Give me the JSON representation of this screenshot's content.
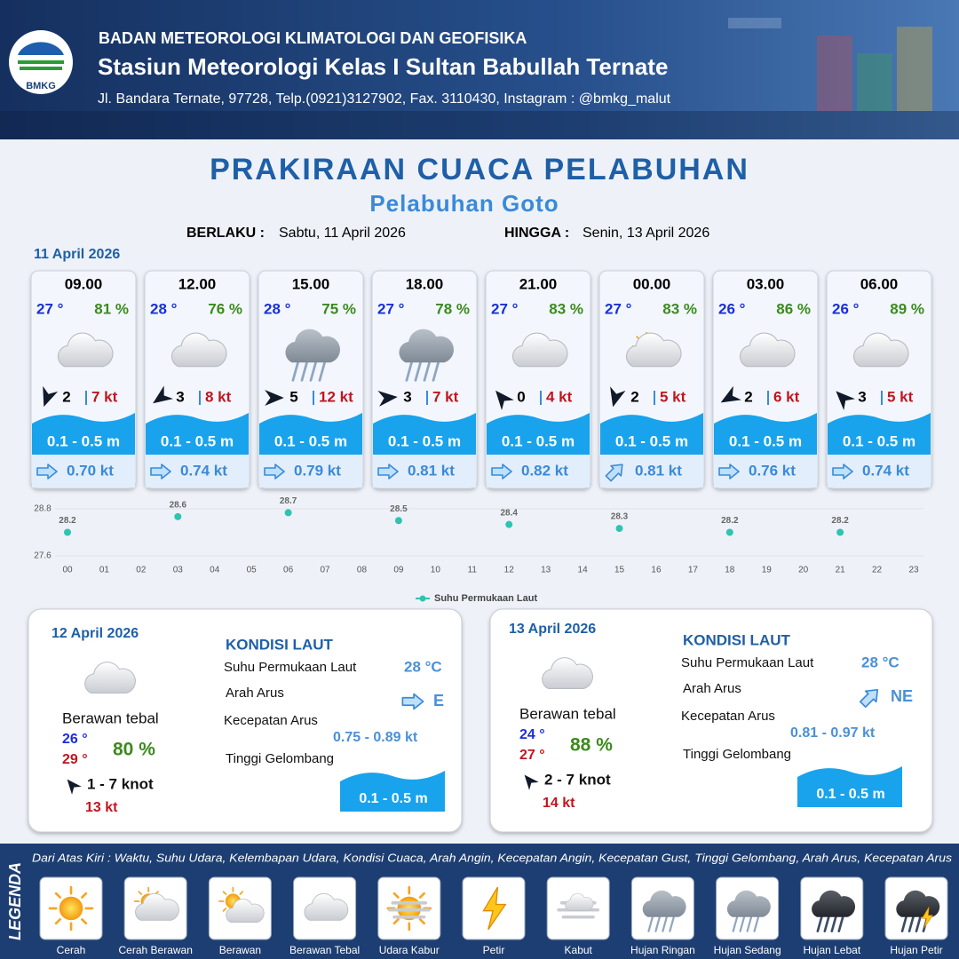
{
  "header": {
    "logo": "BMKG",
    "org": "BADAN METEOROLOGI KLIMATOLOGI DAN GEOFISIKA",
    "station": "Stasiun Meteorologi Kelas I Sultan Babullah Ternate",
    "address": "Jl. Bandara Ternate, 97728, Telp.(0921)3127902, Fax. 3110430, Instagram : @bmkg_malut"
  },
  "title": "PRAKIRAAN CUACA PELABUHAN",
  "subtitle": "Pelabuhan Goto",
  "validity": {
    "from_label": "BERLAKU :",
    "from": "Sabtu, 11 April 2026",
    "to_label": "HINGGA :",
    "to": "Senin, 13 April 2026"
  },
  "day1": {
    "date": "11 April 2026",
    "forecasts": [
      {
        "time": "09.00",
        "temp": "27 °",
        "humidity": "81 %",
        "wind": "2",
        "gust": "7 kt",
        "wave": "0.1 - 0.5 m",
        "current": "0.70 kt"
      },
      {
        "time": "12.00",
        "temp": "28 °",
        "humidity": "76 %",
        "wind": "3",
        "gust": "8 kt",
        "wave": "0.1 - 0.5 m",
        "current": "0.74 kt"
      },
      {
        "time": "15.00",
        "temp": "28 °",
        "humidity": "75 %",
        "wind": "5",
        "gust": "12 kt",
        "wave": "0.1 - 0.5 m",
        "current": "0.79 kt"
      },
      {
        "time": "18.00",
        "temp": "27 °",
        "humidity": "78 %",
        "wind": "3",
        "gust": "7 kt",
        "wave": "0.1 - 0.5 m",
        "current": "0.81 kt"
      },
      {
        "time": "21.00",
        "temp": "27 °",
        "humidity": "83 %",
        "wind": "0",
        "gust": "4 kt",
        "wave": "0.1 - 0.5 m",
        "current": "0.82 kt"
      },
      {
        "time": "00.00",
        "temp": "27 °",
        "humidity": "83 %",
        "wind": "2",
        "gust": "5 kt",
        "wave": "0.1 - 0.5 m",
        "current": "0.81 kt"
      },
      {
        "time": "03.00",
        "temp": "26 °",
        "humidity": "86 %",
        "wind": "2",
        "gust": "6 kt",
        "wave": "0.1 - 0.5 m",
        "current": "0.76 kt"
      },
      {
        "time": "06.00",
        "temp": "26 °",
        "humidity": "89 %",
        "wind": "3",
        "gust": "5 kt",
        "wave": "0.1 - 0.5 m",
        "current": "0.74 kt"
      }
    ]
  },
  "chart_data": {
    "type": "scatter",
    "categories": [
      "00",
      "01",
      "02",
      "03",
      "04",
      "05",
      "06",
      "07",
      "08",
      "09",
      "10",
      "11",
      "12",
      "13",
      "14",
      "15",
      "16",
      "17",
      "18",
      "19",
      "20",
      "21",
      "22",
      "23"
    ],
    "series": [
      {
        "name": "Suhu Permukaan Laut",
        "color": "#2ec4b0",
        "values": [
          28.2,
          null,
          null,
          28.6,
          null,
          null,
          28.7,
          null,
          null,
          28.5,
          null,
          null,
          28.4,
          null,
          null,
          28.3,
          null,
          null,
          28.2,
          null,
          null,
          28.2,
          null,
          null
        ]
      }
    ],
    "ylim": [
      27.6,
      28.8
    ],
    "yticks": [
      27.6,
      28.8
    ],
    "grid": true
  },
  "days": [
    {
      "date": "12 April 2026",
      "condition": "Berawan tebal",
      "tmin": "26 °",
      "tmax": "29 °",
      "humidity": "80 %",
      "wind": "1  - 7 knot",
      "gust": "13 kt",
      "sea_title": "KONDISI LAUT",
      "sst_label": "Suhu Permukaan Laut",
      "sst": "28 °C",
      "dir_label": "Arah Arus",
      "dir": "E",
      "speed_label": "Kecepatan Arus",
      "speed": "0.75  - 0.89 kt",
      "wave_label": "Tinggi Gelombang",
      "wave": "0.1 - 0.5 m"
    },
    {
      "date": "13 April 2026",
      "condition": "Berawan tebal",
      "tmin": "24 °",
      "tmax": "27 °",
      "humidity": "88 %",
      "wind": "2  - 7 knot",
      "gust": "14 kt",
      "sea_title": "KONDISI LAUT",
      "sst_label": "Suhu Permukaan Laut",
      "sst": "28 °C",
      "dir_label": "Arah Arus",
      "dir": "NE",
      "speed_label": "Kecepatan Arus",
      "speed": "0.81  - 0.97 kt",
      "wave_label": "Tinggi Gelombang",
      "wave": "0.1 - 0.5 m"
    }
  ],
  "legend": {
    "title": "LEGENDA",
    "description": "Dari Atas Kiri : Waktu, Suhu Udara, Kelembapan Udara, Kondisi Cuaca, Arah Angin, Kecepatan Angin, Kecepatan Gust, Tinggi Gelombang, Arah Arus, Kecepatan Arus",
    "items": [
      "Cerah",
      "Cerah Berawan",
      "Berawan",
      "Berawan Tebal",
      "Udara Kabur",
      "Petir",
      "Kabut",
      "Hujan Ringan",
      "Hujan Sedang",
      "Hujan Lebat",
      "Hujan Petir"
    ]
  }
}
